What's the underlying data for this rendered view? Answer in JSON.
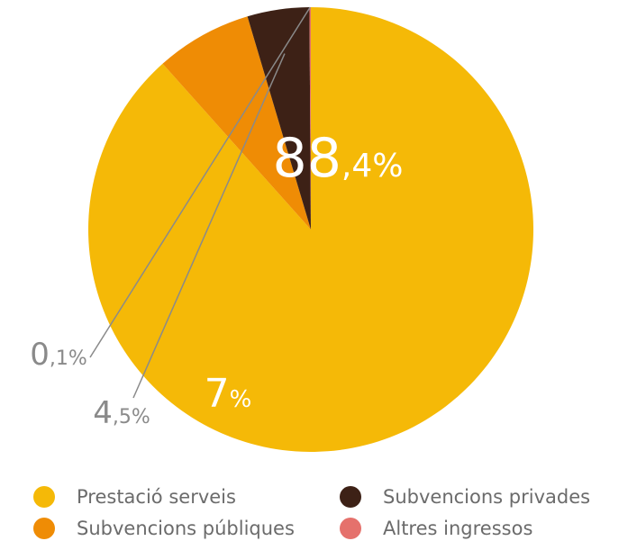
{
  "chart_data": {
    "type": "pie",
    "categories": [
      "Prestació serveis",
      "Subvencions públiques",
      "Subvencions privades",
      "Altres ingressos"
    ],
    "values": [
      88.4,
      7,
      4.5,
      0.1
    ],
    "colors": [
      "#f5b907",
      "#ef8c05",
      "#3d2116",
      "#e5716c"
    ],
    "labels": [
      {
        "main": "88",
        "suffix": ",4%"
      },
      {
        "main": "7",
        "suffix": "%"
      },
      {
        "main": "4",
        "suffix": ",5%"
      },
      {
        "main": "0",
        "suffix": ",1%"
      }
    ],
    "legend": {
      "placement": "bottom",
      "items": [
        {
          "label": "Prestació serveis",
          "color": "#f5b907"
        },
        {
          "label": "Subvencions privades",
          "color": "#3d2116"
        },
        {
          "label": "Subvencions públiques",
          "color": "#ef8c05"
        },
        {
          "label": "Altres ingressos",
          "color": "#e5716c"
        }
      ]
    },
    "label_colors": {
      "inside": "#ffffff",
      "outside": "#8a8a8a",
      "leader": "#8a8a8a"
    }
  }
}
